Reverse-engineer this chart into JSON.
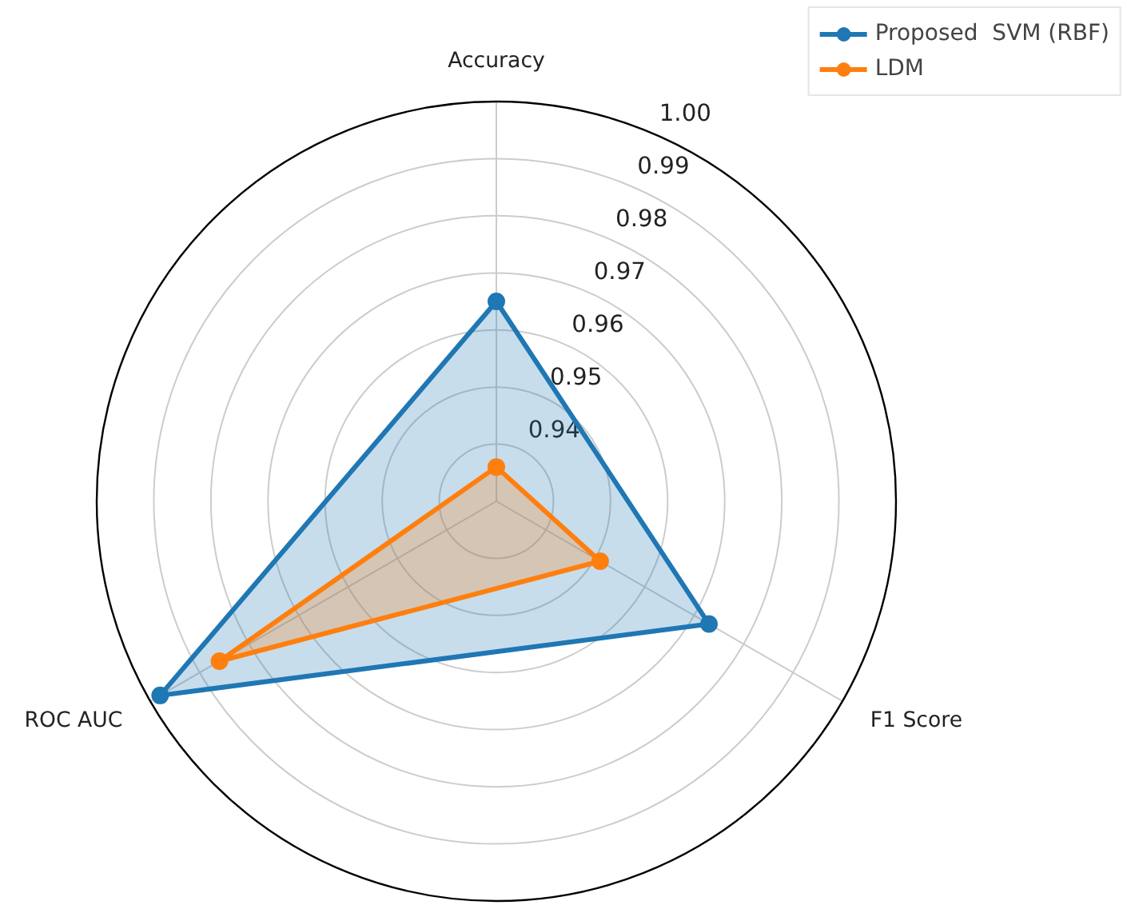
{
  "chart_data": {
    "type": "radar",
    "categories": [
      "Accuracy",
      "F1 Score",
      "ROC AUC"
    ],
    "series": [
      {
        "name": "Proposed  SVM (RBF)",
        "color": "#1f77b4",
        "values": [
          0.965,
          0.973,
          0.998
        ]
      },
      {
        "name": "LDM",
        "color": "#ff7f0e",
        "values": [
          0.936,
          0.951,
          0.986
        ]
      }
    ],
    "ylim": [
      0.93,
      1.0
    ],
    "yticks": [
      0.94,
      0.95,
      0.96,
      0.97,
      0.98,
      0.99,
      "1.00"
    ],
    "grid": true,
    "legend": "top right",
    "marker": "circle"
  }
}
